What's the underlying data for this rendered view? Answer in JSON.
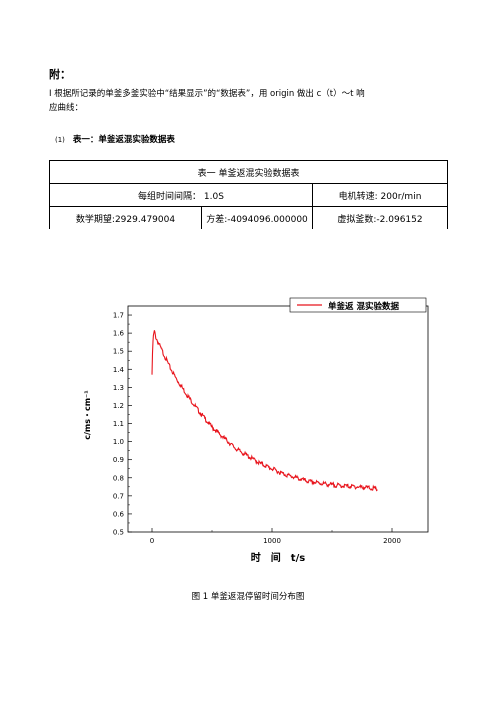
{
  "doc": {
    "heading": "附：",
    "intro_line1": "Ⅰ   根据所记录的单釜多釜实验中“结果显示”的“数据表”，用 origin 做出 c（t）～t 响",
    "intro_line2": "应曲线：",
    "section_tag": "(1)",
    "section_label": "表一：单釜返混实验数据表"
  },
  "table": {
    "title": "表一 单釜返混实验数据表",
    "interval": "每组时间间隔： 1.0S",
    "speed": "电机转速: 200r/min",
    "expectation": "数学期望:2929.479004",
    "variance": "方差:-4094096.000000",
    "virtual_stages": "虚拟釜数:-2.096152"
  },
  "chart_data": {
    "type": "line",
    "title": "",
    "xlabel": "时　间　t/s",
    "ylabel": "c/ms・cm⁻¹",
    "xlim": [
      -200,
      2300
    ],
    "ylim": [
      0.5,
      1.75
    ],
    "x_ticks": [
      "0",
      "1000",
      "2000"
    ],
    "y_ticks": [
      "0.5",
      "0.6",
      "0.7",
      "0.8",
      "0.9",
      "1.0",
      "1.1",
      "1.2",
      "1.3",
      "1.4",
      "1.5",
      "1.6",
      "1.7"
    ],
    "legend_position": "top-right",
    "series": [
      {
        "name": "单釜返 混实验数据",
        "color": "#e8141c",
        "x": [
          0,
          5,
          10,
          15,
          20,
          30,
          50,
          100,
          150,
          200,
          300,
          400,
          500,
          600,
          700,
          800,
          900,
          1000,
          1100,
          1200,
          1300,
          1400,
          1500,
          1600,
          1700,
          1800,
          1850,
          1880
        ],
        "y": [
          1.37,
          1.52,
          1.58,
          1.6,
          1.61,
          1.58,
          1.55,
          1.48,
          1.41,
          1.35,
          1.25,
          1.16,
          1.08,
          1.02,
          0.96,
          0.92,
          0.88,
          0.85,
          0.82,
          0.8,
          0.78,
          0.77,
          0.76,
          0.755,
          0.75,
          0.745,
          0.74,
          0.735
        ]
      }
    ]
  },
  "caption": "图 1 单釜返混停留时间分布图"
}
